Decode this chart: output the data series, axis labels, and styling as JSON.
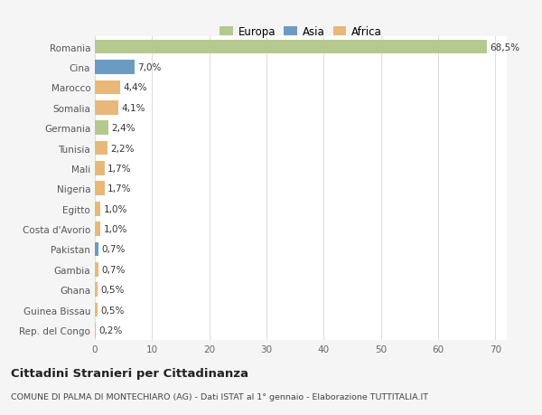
{
  "countries": [
    "Romania",
    "Cina",
    "Marocco",
    "Somalia",
    "Germania",
    "Tunisia",
    "Mali",
    "Nigeria",
    "Egitto",
    "Costa d'Avorio",
    "Pakistan",
    "Gambia",
    "Ghana",
    "Guinea Bissau",
    "Rep. del Congo"
  ],
  "values": [
    68.5,
    7.0,
    4.4,
    4.1,
    2.4,
    2.2,
    1.7,
    1.7,
    1.0,
    1.0,
    0.7,
    0.7,
    0.5,
    0.5,
    0.2
  ],
  "labels": [
    "68,5%",
    "7,0%",
    "4,4%",
    "4,1%",
    "2,4%",
    "2,2%",
    "1,7%",
    "1,7%",
    "1,0%",
    "1,0%",
    "0,7%",
    "0,7%",
    "0,5%",
    "0,5%",
    "0,2%"
  ],
  "continents": [
    "Europa",
    "Asia",
    "Africa",
    "Africa",
    "Europa",
    "Africa",
    "Africa",
    "Africa",
    "Africa",
    "Africa",
    "Asia",
    "Africa",
    "Africa",
    "Africa",
    "Africa"
  ],
  "colors": {
    "Europa": "#b5c98e",
    "Asia": "#6b9bc3",
    "Africa": "#e8b87a"
  },
  "title": "Cittadini Stranieri per Cittadinanza",
  "subtitle": "COMUNE DI PALMA DI MONTECHIARO (AG) - Dati ISTAT al 1° gennaio - Elaborazione TUTTITALIA.IT",
  "xlim": [
    0,
    72
  ],
  "xticks": [
    0,
    10,
    20,
    30,
    40,
    50,
    60,
    70
  ],
  "background_color": "#f5f5f5",
  "bar_background": "#ffffff",
  "grid_color": "#dddddd"
}
